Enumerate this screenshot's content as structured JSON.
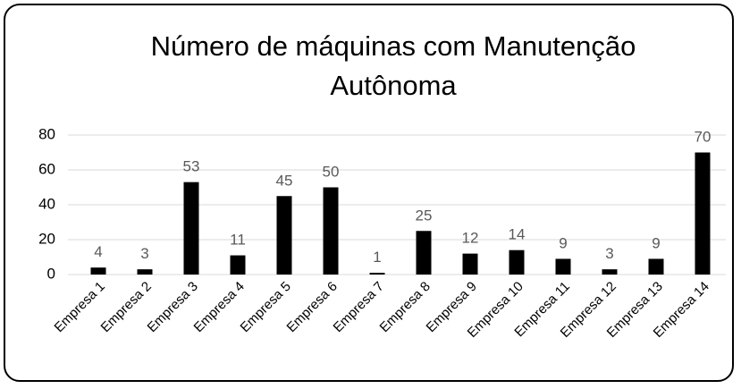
{
  "chart_data": {
    "type": "bar",
    "title": "Número de máquinas com Manutenção Autônoma",
    "categories": [
      "Empresa 1",
      "Empresa 2",
      "Empresa 3",
      "Empresa 4",
      "Empresa 5",
      "Empresa 6",
      "Empresa 7",
      "Empresa 8",
      "Empresa 9",
      "Empresa 10",
      "Empresa 11",
      "Empresa 12",
      "Empresa 13",
      "Empresa 14"
    ],
    "values": [
      4,
      3,
      53,
      11,
      45,
      50,
      1,
      25,
      12,
      14,
      9,
      3,
      9,
      70
    ],
    "color": "#000000",
    "ylim": [
      0,
      80
    ],
    "yticks": [
      0,
      20,
      40,
      60,
      80
    ],
    "grid": true
  }
}
